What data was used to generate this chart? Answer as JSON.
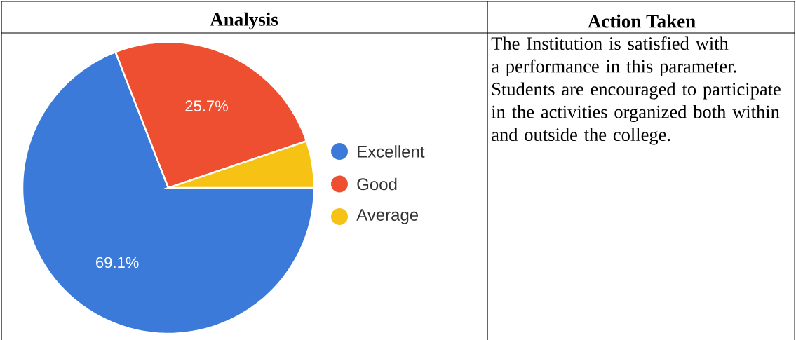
{
  "chart_data": {
    "type": "pie",
    "title": "Analysis",
    "categories": [
      "Excellent",
      "Good",
      "Average"
    ],
    "values": [
      69.1,
      25.7,
      5.2
    ],
    "colors": [
      "#3b7ad9",
      "#ee4f30",
      "#f6c214"
    ],
    "value_labels": [
      "69.1%",
      "25.7%",
      null
    ],
    "legend": "right",
    "annotations": [
      "Action Taken",
      "The Institution is satisfied with a performance in this parameter. Students are encouraged to participate in the activities organized both within and outside the college."
    ]
  }
}
